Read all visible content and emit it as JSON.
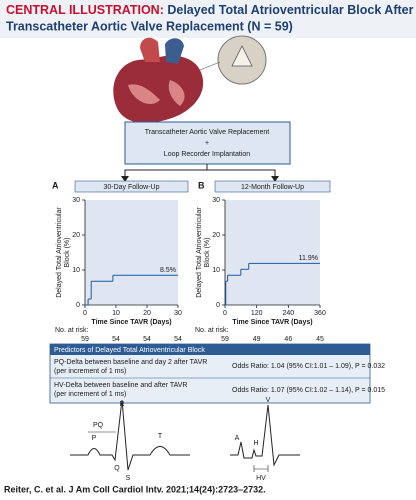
{
  "header": {
    "label": "CENTRAL ILLUSTRATION:",
    "title_lines": [
      "Delayed Total Atrioventricular Block After",
      "Transcatheter Aortic Valve Replacement (N = 59)"
    ]
  },
  "flow": {
    "lines": [
      "Transcatheter Aortic Valve Replacement",
      "+",
      "Loop Recorder Implantation"
    ]
  },
  "chart_data": [
    {
      "type": "line",
      "step": true,
      "panel": "A",
      "subtitle": "30-Day Follow-Up",
      "ylabel": "Delayed Total Atrioventricular Block (%)",
      "xlabel": "Time Since TAVR (Days)",
      "color": "#1d5aa0",
      "x": [
        0,
        1,
        2,
        9,
        30
      ],
      "series": [
        {
          "values": [
            0,
            1.7,
            6.8,
            8.5,
            8.5
          ]
        }
      ],
      "annotation": "8.5%",
      "xlim": [
        0,
        30
      ],
      "xticks": [
        0,
        10,
        20,
        30
      ],
      "ylim": [
        0,
        30
      ],
      "yticks": [
        0,
        10,
        20,
        30
      ],
      "at_risk": {
        "label": "No. at risk:",
        "values": [
          59,
          54,
          54,
          54
        ]
      }
    },
    {
      "type": "line",
      "step": true,
      "panel": "B",
      "subtitle": "12-Month Follow-Up",
      "ylabel": "Delayed Total Atrioventricular Block (%)",
      "xlabel": "Time Since TAVR (Days)",
      "color": "#1d5aa0",
      "x": [
        0,
        3,
        10,
        60,
        90,
        360
      ],
      "series": [
        {
          "values": [
            0,
            6.8,
            8.5,
            10.2,
            11.9,
            11.9
          ]
        }
      ],
      "annotation": "11.9%",
      "xlim": [
        0,
        360
      ],
      "xticks": [
        0,
        120,
        240,
        360
      ],
      "ylim": [
        0,
        30
      ],
      "yticks": [
        0,
        10,
        20,
        30
      ],
      "at_risk": {
        "label": "No. at risk:",
        "values": [
          59,
          49,
          46,
          45
        ]
      }
    }
  ],
  "table": {
    "title": "Predictors of Delayed Total Atrioventricular Block",
    "rows": [
      [
        "PQ-Delta between baseline and day 2 after TAVR",
        "(per increment of 1 ms)",
        "Odds Ratio: 1.04 (95% CI:1.01 – 1.09), P = 0.032"
      ],
      [
        "HV-Delta between baseline and after TAVR",
        "(per increment of 1 ms)",
        "Odds Ratio: 1.07 (95% CI:1.02 – 1.14), P = 0.015"
      ]
    ]
  },
  "ecg": {
    "surface": [
      "P",
      "PQ",
      "R",
      "Q",
      "S",
      "T"
    ],
    "intracardiac": [
      "A",
      "H",
      "V",
      "HV"
    ]
  },
  "footer": "Reiter, C. et al. J Am Coll Cardiol Intv. 2021;14(24):2723–2732."
}
